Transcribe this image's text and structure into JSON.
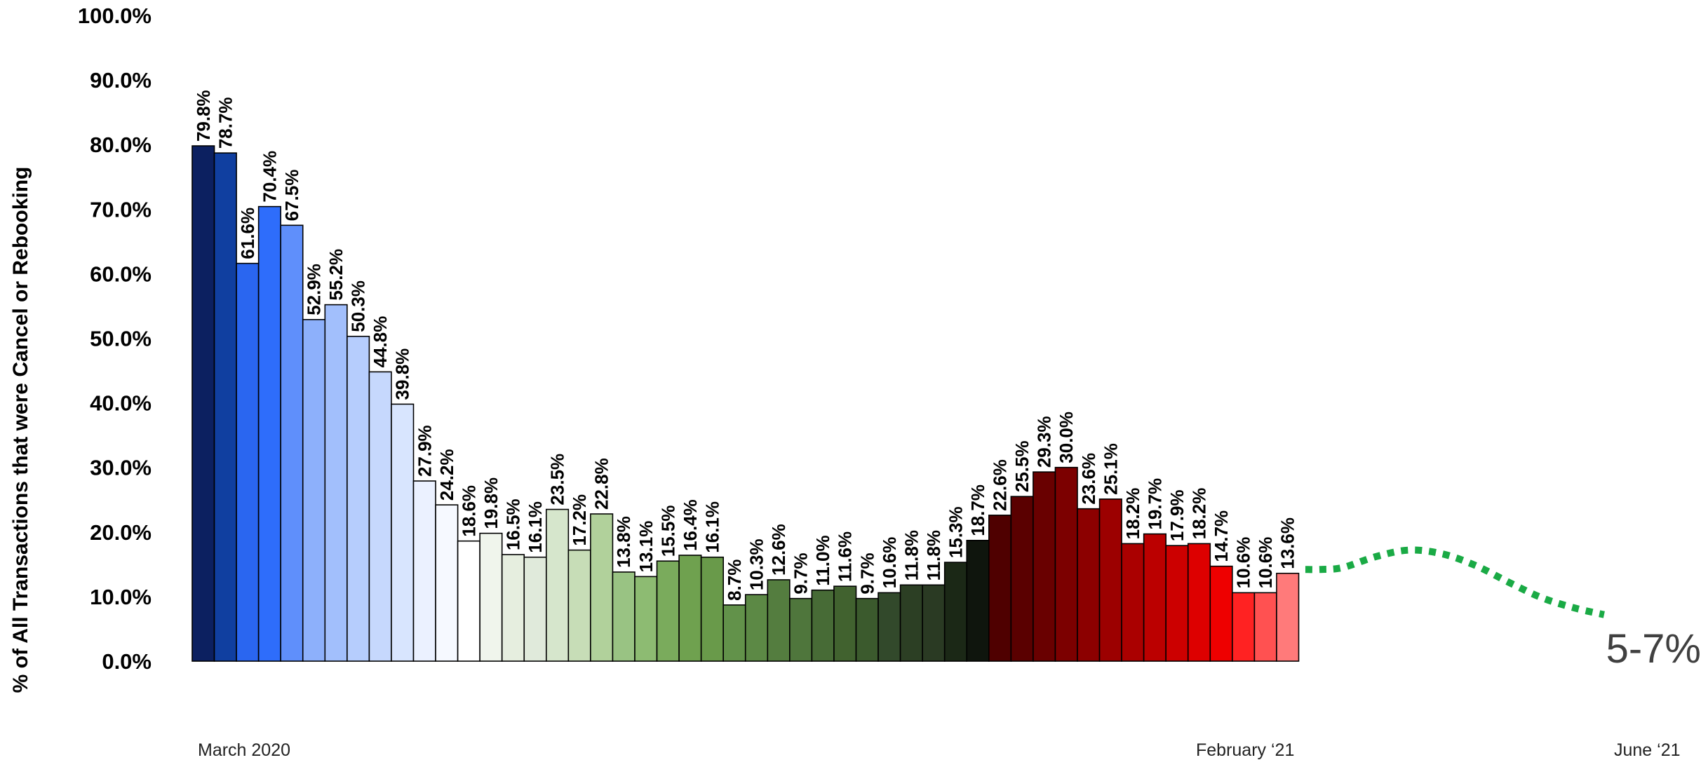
{
  "chart_data": {
    "type": "bar",
    "ylabel": "% of All Transactions that were Cancel or Rebooking",
    "xlabel": "",
    "ylim": [
      0,
      100
    ],
    "y_ticks": [
      "0.0%",
      "10.0%",
      "20.0%",
      "30.0%",
      "40.0%",
      "50.0%",
      "60.0%",
      "70.0%",
      "80.0%",
      "90.0%",
      "100.0%"
    ],
    "grid": false,
    "x_labels": {
      "start": "March 2020",
      "end_bars": "February ‘21",
      "end_projection": "June ‘21"
    },
    "values": [
      79.8,
      78.7,
      61.6,
      70.4,
      67.5,
      52.9,
      55.2,
      50.3,
      44.8,
      39.8,
      27.9,
      24.2,
      18.6,
      19.8,
      16.5,
      16.1,
      23.5,
      17.2,
      22.8,
      13.8,
      13.1,
      15.5,
      16.4,
      16.1,
      8.7,
      10.3,
      12.6,
      9.7,
      11.0,
      11.6,
      9.7,
      10.6,
      11.8,
      11.8,
      15.3,
      18.7,
      22.6,
      25.5,
      29.3,
      30.0,
      23.6,
      25.1,
      18.2,
      19.7,
      17.9,
      18.2,
      14.7,
      10.6,
      10.6,
      13.6
    ],
    "labels": [
      "79.8%",
      "78.7%",
      "61.6%",
      "70.4%",
      "67.5%",
      "52.9%",
      "55.2%",
      "50.3%",
      "44.8%",
      "39.8%",
      "27.9%",
      "24.2%",
      "18.6%",
      "19.8%",
      "16.5%",
      "16.1%",
      "23.5%",
      "17.2%",
      "22.8%",
      "13.8%",
      "13.1%",
      "15.5%",
      "16.4%",
      "16.1%",
      "8.7%",
      "10.3%",
      "12.6%",
      "9.7%",
      "11.0%",
      "11.6%",
      "9.7%",
      "10.6%",
      "11.8%",
      "11.8%",
      "15.3%",
      "18.7%",
      "22.6%",
      "25.5%",
      "29.3%",
      "30.0%",
      "23.6%",
      "25.1%",
      "18.2%",
      "19.7%",
      "17.9%",
      "18.2%",
      "14.7%",
      "10.6%",
      "10.6%",
      "13.6%"
    ],
    "colors": [
      "#0c2060",
      "#103fa0",
      "#2a66f0",
      "#2e6dfb",
      "#5f8ffb",
      "#8db0fb",
      "#a2bffc",
      "#b6cdfd",
      "#c6d8fd",
      "#d8e5fe",
      "#ebf1ff",
      "#f6f9ff",
      "#ffffff",
      "#f0f5ec",
      "#e6eedf",
      "#e0eadb",
      "#d6e6cc",
      "#c7ddb7",
      "#b1d19b",
      "#99c383",
      "#8dbb72",
      "#7aab5c",
      "#6fa14f",
      "#699a4a",
      "#62924a",
      "#5c8945",
      "#547d3f",
      "#4f763c",
      "#476b36",
      "#41622f",
      "#3b5a2d",
      "#32492b",
      "#2c3f24",
      "#2a3a23",
      "#1b2816",
      "#0f150d",
      "#4f0000",
      "#5a0000",
      "#690000",
      "#7c0000",
      "#8c0000",
      "#9c0000",
      "#aa0000",
      "#bb0000",
      "#cc0000",
      "#dd0000",
      "#ee0000",
      "#ff2222",
      "#ff5151",
      "#ff7a7a"
    ],
    "projection": {
      "label": "5-7%",
      "color": "#1aaa45",
      "style": "dotted",
      "points": [
        [
          50.3,
          14.2
        ],
        [
          51.0,
          14.2
        ],
        [
          52.0,
          14.5
        ],
        [
          53.5,
          16.2
        ],
        [
          55.0,
          17.2
        ],
        [
          56.5,
          16.6
        ],
        [
          58.0,
          14.8
        ],
        [
          59.5,
          12.2
        ],
        [
          61.0,
          9.8
        ],
        [
          62.5,
          8.2
        ],
        [
          63.8,
          7.2
        ]
      ]
    }
  }
}
